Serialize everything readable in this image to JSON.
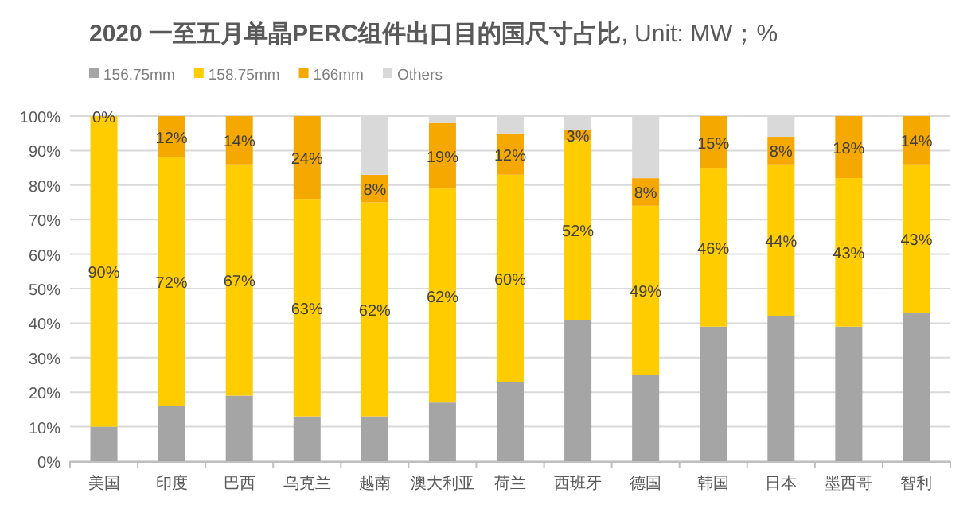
{
  "chart_data": {
    "type": "bar",
    "stacked": true,
    "title": "**2020 一至五月单晶PERC组件出口目的国尺寸占比**, Unit: MW；%",
    "categories": [
      "美国",
      "印度",
      "巴西",
      "乌克兰",
      "越南",
      "澳大利亚",
      "荷兰",
      "西班牙",
      "德国",
      "韩国",
      "日本",
      "墨西哥",
      "智利"
    ],
    "series": [
      {
        "name": "156.75mm",
        "color": "#a5a5a5",
        "values": [
          10,
          16,
          19,
          13,
          13,
          17,
          23,
          41,
          25,
          39,
          42,
          39,
          43
        ]
      },
      {
        "name": "158.75mm",
        "color": "#ffcc00",
        "values": [
          90,
          72,
          67,
          63,
          62,
          62,
          60,
          52,
          49,
          46,
          44,
          43,
          43
        ],
        "value_labels": [
          "90%",
          "72%",
          "67%",
          "63%",
          "62%",
          "62%",
          "60%",
          "52%",
          "49%",
          "46%",
          "44%",
          "43%",
          "43%"
        ]
      },
      {
        "name": "166mm",
        "color": "#f5a800",
        "values": [
          0,
          12,
          14,
          24,
          8,
          19,
          12,
          3,
          8,
          15,
          8,
          18,
          14
        ],
        "value_labels": [
          "0%",
          "12%",
          "14%",
          "24%",
          "8%",
          "19%",
          "12%",
          "3%",
          "8%",
          "15%",
          "8%",
          "18%",
          "14%"
        ]
      },
      {
        "name": "Others",
        "color": "#d9d9d9",
        "values": [
          0,
          0,
          0,
          0,
          17,
          2,
          5,
          4,
          18,
          0,
          6,
          0,
          0
        ]
      }
    ],
    "ylim": [
      0,
      100
    ],
    "yticks": [
      {
        "value": 0,
        "label": "0%"
      },
      {
        "value": 10,
        "label": "10%"
      },
      {
        "value": 20,
        "label": "20%"
      },
      {
        "value": 30,
        "label": "30%"
      },
      {
        "value": 40,
        "label": "40%"
      },
      {
        "value": 50,
        "label": "50%"
      },
      {
        "value": 60,
        "label": "60%"
      },
      {
        "value": 70,
        "label": "70%"
      },
      {
        "value": 80,
        "label": "80%"
      },
      {
        "value": 90,
        "label": "90%"
      },
      {
        "value": 100,
        "label": "100%"
      }
    ],
    "grid": "y",
    "legend": "top left"
  }
}
